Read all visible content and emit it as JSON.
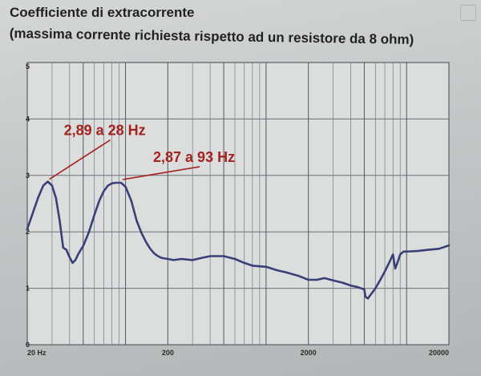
{
  "header": {
    "title": "Coefficiente di extracorrente",
    "subtitle": "(massima corrente richiesta rispetto ad un resistore da 8 ohm)"
  },
  "chart_data": {
    "type": "line",
    "title": "Coefficiente di extracorrente",
    "subtitle": "(massima corrente richiesta rispetto ad un resistore da 8 ohm)",
    "xlabel": "",
    "ylabel": "",
    "x_scale": "log",
    "xlim": [
      20,
      20000
    ],
    "ylim": [
      0,
      5
    ],
    "grid": true,
    "x_tick_labels": [
      {
        "value": 20,
        "label": "20 Hz"
      },
      {
        "value": 200,
        "label": "200"
      },
      {
        "value": 2000,
        "label": "2000"
      },
      {
        "value": 20000,
        "label": "20000"
      }
    ],
    "y_tick_labels": [
      {
        "value": 0,
        "label": "0"
      },
      {
        "value": 1,
        "label": "1"
      },
      {
        "value": 2,
        "label": "2"
      },
      {
        "value": 3,
        "label": "3"
      },
      {
        "value": 4,
        "label": "4"
      },
      {
        "value": 5,
        "label": "5"
      }
    ],
    "series": [
      {
        "color": "#3a3f78",
        "x": [
          20,
          22,
          24,
          26,
          28,
          30,
          32,
          34,
          36,
          38,
          40,
          42,
          44,
          46,
          48,
          50,
          55,
          60,
          65,
          70,
          75,
          80,
          85,
          90,
          93,
          100,
          110,
          120,
          130,
          140,
          150,
          160,
          170,
          180,
          200,
          220,
          250,
          300,
          350,
          400,
          500,
          600,
          700,
          800,
          1000,
          1200,
          1400,
          1700,
          2000,
          2300,
          2600,
          3000,
          3500,
          4000,
          4500,
          5000,
          5100,
          5300,
          5600,
          6000,
          6500,
          7000,
          7500,
          8000,
          8300,
          8600,
          9000,
          9500,
          10000,
          12000,
          14000,
          17000,
          20000
        ],
        "values": [
          2.05,
          2.35,
          2.62,
          2.82,
          2.89,
          2.82,
          2.6,
          2.2,
          1.72,
          1.68,
          1.55,
          1.45,
          1.5,
          1.6,
          1.68,
          1.75,
          2.0,
          2.3,
          2.55,
          2.72,
          2.82,
          2.86,
          2.87,
          2.87,
          2.87,
          2.8,
          2.55,
          2.2,
          1.98,
          1.82,
          1.7,
          1.62,
          1.57,
          1.54,
          1.52,
          1.5,
          1.52,
          1.5,
          1.54,
          1.57,
          1.57,
          1.52,
          1.45,
          1.4,
          1.38,
          1.32,
          1.28,
          1.22,
          1.15,
          1.15,
          1.18,
          1.14,
          1.1,
          1.05,
          1.02,
          0.98,
          0.85,
          0.82,
          0.9,
          1.0,
          1.15,
          1.3,
          1.45,
          1.6,
          1.35,
          1.45,
          1.6,
          1.65,
          1.65,
          1.66,
          1.68,
          1.7,
          1.76
        ]
      }
    ],
    "annotations": [
      {
        "text": "2,89 a 28 Hz",
        "x": 28,
        "y": 2.89
      },
      {
        "text": "2,87 a 93 Hz",
        "x": 93,
        "y": 2.87
      }
    ]
  }
}
